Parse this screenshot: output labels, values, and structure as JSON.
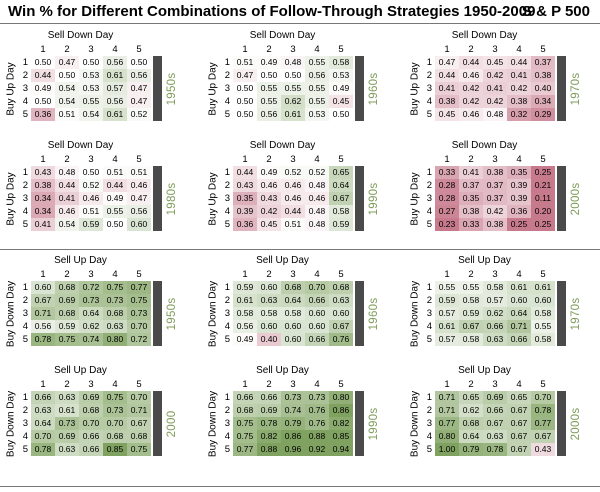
{
  "title": "Win % for Different Combinations of Follow-Through Strategies 1950-2009",
  "index": "S & P 500",
  "chart_data": [
    {
      "type": "heatmap",
      "section": "Sell Down Day / Buy Up Day",
      "top_label": "Sell Down Day",
      "side_label": "Buy Up Day",
      "decade": "1950s",
      "categories": [
        "1",
        "2",
        "3",
        "4",
        "5"
      ],
      "rows": [
        "1",
        "2",
        "3",
        "4",
        "5"
      ],
      "values": [
        [
          0.5,
          0.47,
          0.5,
          0.56,
          0.5
        ],
        [
          0.44,
          0.5,
          0.53,
          0.61,
          0.56
        ],
        [
          0.49,
          0.54,
          0.53,
          0.57,
          0.47
        ],
        [
          0.5,
          0.54,
          0.55,
          0.56,
          0.47
        ],
        [
          0.36,
          0.51,
          0.54,
          0.61,
          0.52
        ]
      ]
    },
    {
      "type": "heatmap",
      "section": "Sell Down Day / Buy Up Day",
      "top_label": "Sell Down Day",
      "side_label": "Buy Up Day",
      "decade": "1960s",
      "categories": [
        "1",
        "2",
        "3",
        "4",
        "5"
      ],
      "rows": [
        "1",
        "2",
        "3",
        "4",
        "5"
      ],
      "values": [
        [
          0.51,
          0.49,
          0.48,
          0.55,
          0.58
        ],
        [
          0.47,
          0.5,
          0.5,
          0.56,
          0.53
        ],
        [
          0.5,
          0.55,
          0.55,
          0.55,
          0.49
        ],
        [
          0.5,
          0.55,
          0.62,
          0.55,
          0.45
        ],
        [
          0.5,
          0.56,
          0.61,
          0.53,
          0.5
        ]
      ]
    },
    {
      "type": "heatmap",
      "section": "Sell Down Day / Buy Up Day",
      "top_label": "Sell Down Day",
      "side_label": "Buy Up Day",
      "decade": "1970s",
      "categories": [
        "1",
        "2",
        "3",
        "4",
        "5"
      ],
      "rows": [
        "1",
        "2",
        "3",
        "4",
        "5"
      ],
      "values": [
        [
          0.47,
          0.44,
          0.45,
          0.44,
          0.37
        ],
        [
          0.44,
          0.46,
          0.42,
          0.41,
          0.38
        ],
        [
          0.41,
          0.42,
          0.41,
          0.42,
          0.4
        ],
        [
          0.38,
          0.42,
          0.42,
          0.38,
          0.34
        ],
        [
          0.45,
          0.46,
          0.48,
          0.32,
          0.29
        ]
      ]
    },
    {
      "type": "heatmap",
      "section": "Sell Down Day / Buy Up Day",
      "top_label": "Sell Down Day",
      "side_label": "Buy Up Day",
      "decade": "1980s",
      "categories": [
        "1",
        "2",
        "3",
        "4",
        "5"
      ],
      "rows": [
        "1",
        "2",
        "3",
        "4",
        "5"
      ],
      "values": [
        [
          0.43,
          0.48,
          0.5,
          0.51,
          0.51
        ],
        [
          0.38,
          0.44,
          0.52,
          0.44,
          0.46
        ],
        [
          0.34,
          0.41,
          0.46,
          0.49,
          0.47
        ],
        [
          0.34,
          0.46,
          0.51,
          0.55,
          0.56
        ],
        [
          0.41,
          0.54,
          0.59,
          0.5,
          0.6
        ]
      ]
    },
    {
      "type": "heatmap",
      "section": "Sell Down Day / Buy Up Day",
      "top_label": "Sell Down Day",
      "side_label": "Buy Up Day",
      "decade": "1990s",
      "categories": [
        "1",
        "2",
        "3",
        "4",
        "5"
      ],
      "rows": [
        "1",
        "2",
        "3",
        "4",
        "5"
      ],
      "values": [
        [
          0.44,
          0.49,
          0.52,
          0.52,
          0.65
        ],
        [
          0.43,
          0.46,
          0.46,
          0.48,
          0.64
        ],
        [
          0.35,
          0.43,
          0.46,
          0.46,
          0.67
        ],
        [
          0.39,
          0.42,
          0.44,
          0.48,
          0.58
        ],
        [
          0.36,
          0.45,
          0.51,
          0.48,
          0.59
        ]
      ]
    },
    {
      "type": "heatmap",
      "section": "Sell Down Day / Buy Up Day",
      "top_label": "Sell Down Day",
      "side_label": "Buy Up Day",
      "decade": "2000s",
      "categories": [
        "1",
        "2",
        "3",
        "4",
        "5"
      ],
      "rows": [
        "1",
        "2",
        "3",
        "4",
        "5"
      ],
      "values": [
        [
          0.33,
          0.41,
          0.38,
          0.35,
          0.25
        ],
        [
          0.28,
          0.37,
          0.37,
          0.39,
          0.21
        ],
        [
          0.28,
          0.35,
          0.37,
          0.39,
          0.11
        ],
        [
          0.27,
          0.38,
          0.42,
          0.36,
          0.2
        ],
        [
          0.23,
          0.33,
          0.38,
          0.25,
          0.25
        ]
      ]
    },
    {
      "type": "heatmap",
      "section": "Sell Up Day / Buy Down Day",
      "top_label": "Sell Up Day",
      "side_label": "Buy Down Day",
      "decade": "1950s",
      "categories": [
        "1",
        "2",
        "3",
        "4",
        "5"
      ],
      "rows": [
        "1",
        "2",
        "3",
        "4",
        "5"
      ],
      "values": [
        [
          0.6,
          0.68,
          0.72,
          0.75,
          0.77
        ],
        [
          0.67,
          0.69,
          0.73,
          0.73,
          0.75
        ],
        [
          0.71,
          0.68,
          0.64,
          0.68,
          0.73
        ],
        [
          0.56,
          0.59,
          0.62,
          0.63,
          0.7
        ],
        [
          0.78,
          0.75,
          0.74,
          0.8,
          0.72
        ]
      ]
    },
    {
      "type": "heatmap",
      "section": "Sell Up Day / Buy Down Day",
      "top_label": "Sell Up Day",
      "side_label": "Buy Down Day",
      "decade": "1960s",
      "categories": [
        "1",
        "2",
        "3",
        "4",
        "5"
      ],
      "rows": [
        "1",
        "2",
        "3",
        "4",
        "5"
      ],
      "values": [
        [
          0.59,
          0.6,
          0.68,
          0.7,
          0.68
        ],
        [
          0.61,
          0.63,
          0.64,
          0.66,
          0.63
        ],
        [
          0.58,
          0.58,
          0.58,
          0.6,
          0.6
        ],
        [
          0.56,
          0.6,
          0.6,
          0.6,
          0.67
        ],
        [
          0.49,
          0.4,
          0.6,
          0.66,
          0.76
        ]
      ]
    },
    {
      "type": "heatmap",
      "section": "Sell Up Day / Buy Down Day",
      "top_label": "Sell Up Day",
      "side_label": "Buy Down Day",
      "decade": "1970s",
      "categories": [
        "1",
        "2",
        "3",
        "4",
        "5"
      ],
      "rows": [
        "1",
        "2",
        "3",
        "4",
        "5"
      ],
      "values": [
        [
          0.55,
          0.55,
          0.58,
          0.61,
          0.61
        ],
        [
          0.59,
          0.58,
          0.57,
          0.6,
          0.6
        ],
        [
          0.57,
          0.59,
          0.62,
          0.64,
          0.58
        ],
        [
          0.61,
          0.67,
          0.66,
          0.71,
          0.55
        ],
        [
          0.57,
          0.58,
          0.63,
          0.66,
          0.58
        ]
      ]
    },
    {
      "type": "heatmap",
      "section": "Sell Up Day / Buy Down Day",
      "top_label": "Sell Up Day",
      "side_label": "Buy Down Day",
      "decade": "2000",
      "categories": [
        "1",
        "2",
        "3",
        "4",
        "5"
      ],
      "rows": [
        "1",
        "2",
        "3",
        "4",
        "5"
      ],
      "values": [
        [
          0.66,
          0.63,
          0.69,
          0.75,
          0.7
        ],
        [
          0.63,
          0.61,
          0.68,
          0.73,
          0.71
        ],
        [
          0.64,
          0.73,
          0.7,
          0.7,
          0.67
        ],
        [
          0.7,
          0.69,
          0.66,
          0.68,
          0.68
        ],
        [
          0.78,
          0.63,
          0.66,
          0.85,
          0.75
        ]
      ]
    },
    {
      "type": "heatmap",
      "section": "Sell Up Day / Buy Down Day",
      "top_label": "Sell Up Day",
      "side_label": "Buy Down Day",
      "decade": "1990s",
      "categories": [
        "1",
        "2",
        "3",
        "4",
        "5"
      ],
      "rows": [
        "1",
        "2",
        "3",
        "4",
        "5"
      ],
      "values": [
        [
          0.66,
          0.66,
          0.73,
          0.73,
          0.8
        ],
        [
          0.68,
          0.69,
          0.74,
          0.76,
          0.86
        ],
        [
          0.75,
          0.78,
          0.79,
          0.76,
          0.82
        ],
        [
          0.75,
          0.82,
          0.86,
          0.88,
          0.85
        ],
        [
          0.77,
          0.88,
          0.96,
          0.92,
          0.94
        ]
      ]
    },
    {
      "type": "heatmap",
      "section": "Sell Up Day / Buy Down Day",
      "top_label": "Sell Up Day",
      "side_label": "Buy Down Day",
      "decade": "2000s",
      "categories": [
        "1",
        "2",
        "3",
        "4",
        "5"
      ],
      "rows": [
        "1",
        "2",
        "3",
        "4",
        "5"
      ],
      "values": [
        [
          0.71,
          0.65,
          0.69,
          0.65,
          0.7
        ],
        [
          0.71,
          0.62,
          0.66,
          0.67,
          0.78
        ],
        [
          0.77,
          0.68,
          0.67,
          0.67,
          0.77
        ],
        [
          0.8,
          0.64,
          0.63,
          0.67,
          0.67
        ],
        [
          1.0,
          0.79,
          0.78,
          0.67,
          0.43
        ]
      ]
    }
  ],
  "colors": {
    "low": "#c77a8c",
    "mid": "#ffffff",
    "high": "#7fa260",
    "decade": "#7f9c5a",
    "bar": "#4a4a4a"
  }
}
